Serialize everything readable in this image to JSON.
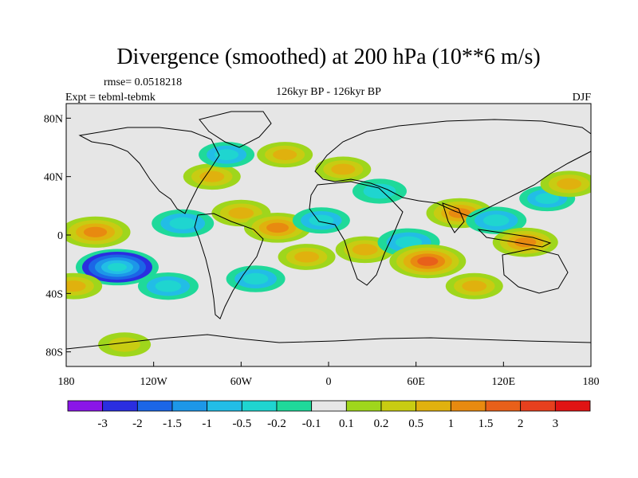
{
  "chart_data": {
    "type": "heatmap",
    "title": "Divergence (smoothed) at 200 hPa (10**6 m/s)",
    "left_string_top": "rmse= 0.0518218",
    "left_string_bottom": "Expt = tebml-tebmk",
    "center_string": "126kyr BP - 126kyr BP",
    "right_string": "DJF",
    "x_ticks": [
      {
        "lon": -180,
        "label": "180"
      },
      {
        "lon": -120,
        "label": "120W"
      },
      {
        "lon": -60,
        "label": "60W"
      },
      {
        "lon": 0,
        "label": "0"
      },
      {
        "lon": 60,
        "label": "60E"
      },
      {
        "lon": 120,
        "label": "120E"
      },
      {
        "lon": 180,
        "label": "180"
      }
    ],
    "y_ticks": [
      {
        "lat": 80,
        "label": "80N"
      },
      {
        "lat": 40,
        "label": "40N"
      },
      {
        "lat": 0,
        "label": "0"
      },
      {
        "lat": -40,
        "label": "40S"
      },
      {
        "lat": -80,
        "label": "80S"
      }
    ],
    "xlim": [
      -180,
      180
    ],
    "ylim": [
      -90,
      90
    ],
    "colorbar": {
      "labels": [
        "-3",
        "-2",
        "-1.5",
        "-1",
        "-0.5",
        "-0.2",
        "-0.1",
        "0.1",
        "0.2",
        "0.5",
        "1",
        "1.5",
        "2",
        "3"
      ],
      "colors": [
        "#8a16e8",
        "#2a2ee0",
        "#1b66e6",
        "#1d97e8",
        "#22bde6",
        "#1fd5d0",
        "#1fd99a",
        "#e6e6e6",
        "#9fd61c",
        "#c8cc12",
        "#e0b10e",
        "#e88a10",
        "#e8601a",
        "#e6401e",
        "#e01414"
      ]
    },
    "anomalies": [
      {
        "lon": -145,
        "lat": -22,
        "value": -2.2
      },
      {
        "lon": -110,
        "lat": -35,
        "value": -0.8
      },
      {
        "lon": -160,
        "lat": 2,
        "value": 1.4
      },
      {
        "lon": -100,
        "lat": 8,
        "value": -0.9
      },
      {
        "lon": -60,
        "lat": 15,
        "value": 0.7
      },
      {
        "lon": -35,
        "lat": 5,
        "value": 1.2
      },
      {
        "lon": -15,
        "lat": -15,
        "value": 0.6
      },
      {
        "lon": -5,
        "lat": 10,
        "value": -0.6
      },
      {
        "lon": 25,
        "lat": -10,
        "value": 0.7
      },
      {
        "lon": 55,
        "lat": -5,
        "value": -0.9
      },
      {
        "lon": 68,
        "lat": -18,
        "value": 1.8
      },
      {
        "lon": 90,
        "lat": 15,
        "value": 1.2
      },
      {
        "lon": 115,
        "lat": 10,
        "value": -0.8
      },
      {
        "lon": 135,
        "lat": -5,
        "value": 1.1
      },
      {
        "lon": 150,
        "lat": 25,
        "value": -0.5
      },
      {
        "lon": 165,
        "lat": 35,
        "value": 0.6
      },
      {
        "lon": -80,
        "lat": 40,
        "value": 0.6
      },
      {
        "lon": -30,
        "lat": 55,
        "value": 0.5
      },
      {
        "lon": -70,
        "lat": 55,
        "value": -0.5
      },
      {
        "lon": 10,
        "lat": 45,
        "value": 0.5
      },
      {
        "lon": 35,
        "lat": 30,
        "value": -0.4
      },
      {
        "lon": -175,
        "lat": -35,
        "value": 0.6
      },
      {
        "lon": -50,
        "lat": -30,
        "value": -0.7
      },
      {
        "lon": 100,
        "lat": -35,
        "value": 0.6
      },
      {
        "lon": -140,
        "lat": -75,
        "value": 0.3
      }
    ]
  }
}
